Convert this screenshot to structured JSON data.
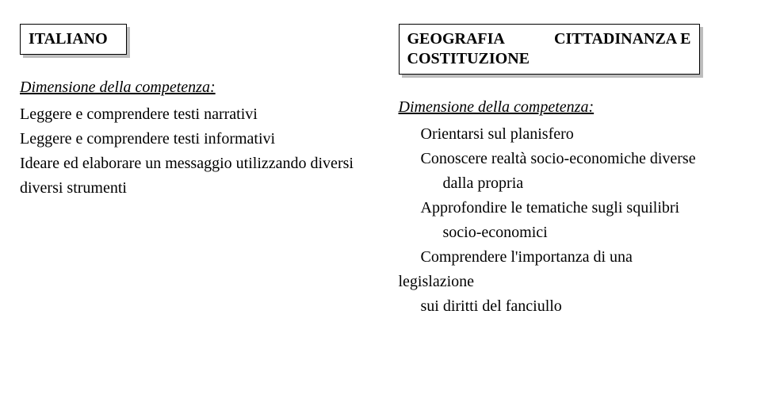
{
  "left": {
    "header": "ITALIANO",
    "dim_label": "Dimensione della competenza:",
    "lines": [
      {
        "text": "Leggere e comprendere testi narrativi",
        "indent": 0
      },
      {
        "text": "Leggere e comprendere testi informativi",
        "indent": 0
      },
      {
        "text": "Ideare ed elaborare un messaggio utilizzando diversi diversi strumenti",
        "indent": 0
      }
    ]
  },
  "right": {
    "header_left": "GEOGRAFIA",
    "header_right": "CITTADINANZA E",
    "header_line2": "COSTITUZIONE",
    "dim_label": "Dimensione della competenza:",
    "lines": [
      {
        "text": "Orientarsi sul planisfero",
        "indent": 1
      },
      {
        "text": "Conoscere realtà socio-economiche diverse",
        "indent": 1
      },
      {
        "text": "dalla propria",
        "indent": 2
      },
      {
        "text": "Approfondire le tematiche sugli squilibri",
        "indent": 1
      },
      {
        "text": "socio-economici",
        "indent": 2
      },
      {
        "text": "Comprendere l'importanza di una",
        "indent": 1
      },
      {
        "text": "legislazione",
        "indent": 0
      },
      {
        "text": "sui diritti del fanciullo",
        "indent": 1
      }
    ]
  },
  "style": {
    "font_family": "Times New Roman",
    "font_size_pt": 15,
    "text_color": "#000000",
    "background": "#ffffff",
    "box_shadow_color": "#bdbdbd",
    "box_border_color": "#000000"
  }
}
